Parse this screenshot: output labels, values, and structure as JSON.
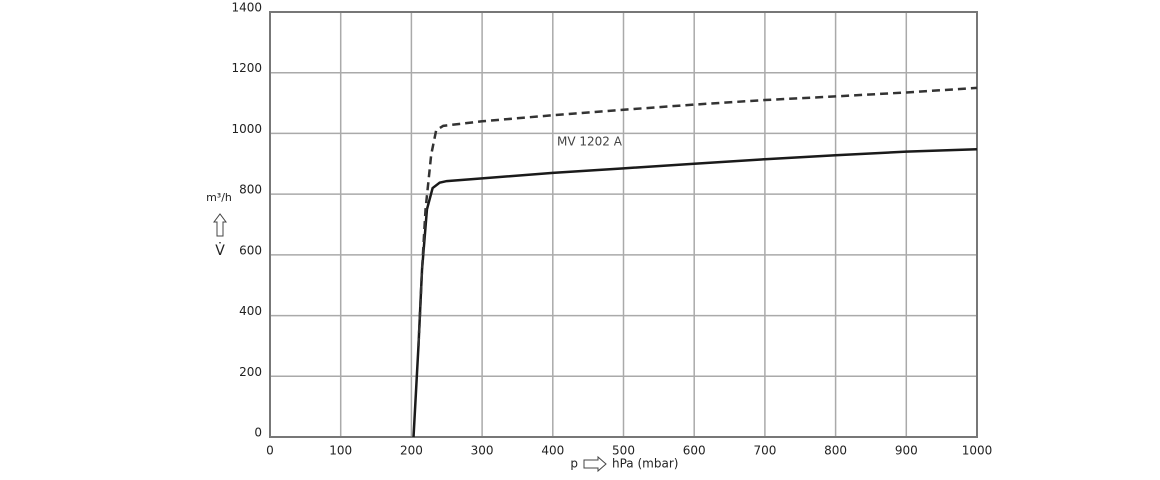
{
  "chart_data": {
    "type": "line",
    "annotation": "MV 1202 A",
    "x_label": "hPa (mbar)",
    "x_symbol": "p",
    "y_label": "m³/h",
    "y_symbol": "V̇",
    "xlim": [
      0,
      1000
    ],
    "xticks": [
      0,
      100,
      200,
      300,
      400,
      500,
      600,
      700,
      800,
      900,
      1000
    ],
    "ylim": [
      0,
      1400
    ],
    "yticks": [
      0,
      200,
      400,
      600,
      800,
      1000,
      1200,
      1400
    ],
    "grid": true,
    "series": [
      {
        "color": "#1a1a1a",
        "style": "solid",
        "x": [
          203,
          210,
          215,
          222,
          230,
          240,
          250,
          300,
          400,
          500,
          600,
          700,
          800,
          900,
          1000
        ],
        "values": [
          0,
          300,
          550,
          750,
          820,
          838,
          843,
          852,
          870,
          885,
          900,
          915,
          928,
          940,
          948
        ]
      },
      {
        "color": "#333333",
        "style": "dashed",
        "x": [
          210,
          215,
          220,
          228,
          235,
          245,
          300,
          400,
          500,
          600,
          700,
          800,
          900,
          1000
        ],
        "values": [
          300,
          550,
          750,
          930,
          1010,
          1025,
          1040,
          1060,
          1078,
          1095,
          1110,
          1122,
          1135,
          1150
        ]
      }
    ]
  }
}
